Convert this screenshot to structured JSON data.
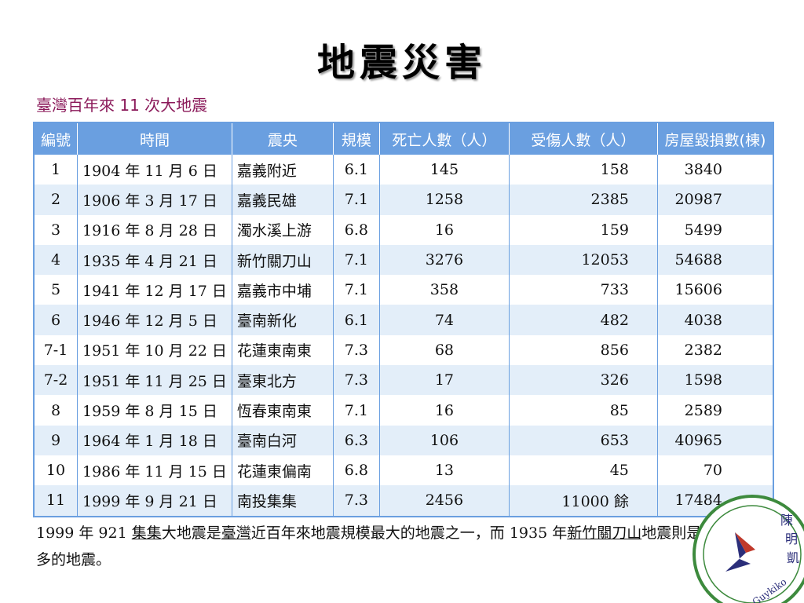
{
  "page": {
    "title": "地震災害",
    "subtitle": "臺灣百年來 11 次大地震"
  },
  "table": {
    "headers": [
      "編號",
      "時間",
      "震央",
      "規模",
      "死亡人數（人）",
      "受傷人數（人）",
      "房屋毀損數(棟)"
    ],
    "rows": [
      {
        "no": "1",
        "time": "1904 年 11 月 6 日",
        "epicenter": "嘉義附近",
        "magnitude": "6.1",
        "deaths": "145",
        "injuries": "158",
        "houses": "3840"
      },
      {
        "no": "2",
        "time": "1906 年 3 月 17 日",
        "epicenter": "嘉義民雄",
        "magnitude": "7.1",
        "deaths": "1258",
        "injuries": "2385",
        "houses": "20987"
      },
      {
        "no": "3",
        "time": "1916 年 8 月 28 日",
        "epicenter": "濁水溪上游",
        "magnitude": "6.8",
        "deaths": "16",
        "injuries": "159",
        "houses": "5499"
      },
      {
        "no": "4",
        "time": "1935 年 4 月 21 日",
        "epicenter": "新竹關刀山",
        "magnitude": "7.1",
        "deaths": "3276",
        "injuries": "12053",
        "houses": "54688"
      },
      {
        "no": "5",
        "time": "1941 年 12 月 17 日",
        "epicenter": "嘉義市中埔",
        "magnitude": "7.1",
        "deaths": "358",
        "injuries": "733",
        "houses": "15606"
      },
      {
        "no": "6",
        "time": "1946 年 12 月 5 日",
        "epicenter": "臺南新化",
        "magnitude": "6.1",
        "deaths": "74",
        "injuries": "482",
        "houses": "4038"
      },
      {
        "no": "7-1",
        "time": "1951 年 10 月 22 日",
        "epicenter": "花蓮東南東",
        "magnitude": "7.3",
        "deaths": "68",
        "injuries": "856",
        "houses": "2382"
      },
      {
        "no": "7-2",
        "time": "1951 年 11 月 25 日",
        "epicenter": "臺東北方",
        "magnitude": "7.3",
        "deaths": "17",
        "injuries": "326",
        "houses": "1598"
      },
      {
        "no": "8",
        "time": "1959 年 8 月 15 日",
        "epicenter": "恆春東南東",
        "magnitude": "7.1",
        "deaths": "16",
        "injuries": "85",
        "houses": "2589"
      },
      {
        "no": "9",
        "time": "1964 年 1 月 18 日",
        "epicenter": "臺南白河",
        "magnitude": "6.3",
        "deaths": "106",
        "injuries": "653",
        "houses": "40965"
      },
      {
        "no": "10",
        "time": "1986 年 11 月 15 日",
        "epicenter": "花蓮東偏南",
        "magnitude": "6.8",
        "deaths": "13",
        "injuries": "45",
        "houses": "70"
      },
      {
        "no": "11",
        "time": "1999 年 9 月 21 日",
        "epicenter": "南投集集",
        "magnitude": "7.3",
        "deaths": "2456",
        "injuries": "11000 餘",
        "houses": "17484"
      }
    ]
  },
  "note": {
    "p1": "1999 年 921 ",
    "u1": "集集",
    "p2": "大地震是",
    "u2": "臺灣",
    "p3": "近百年來地震規模最大的地震之一，而 1935 年",
    "u3": "新竹關刀山",
    "p4": "地震則是造成死傷最多的地震。"
  },
  "logo": {
    "text": "Guykiko",
    "chars": [
      "陳",
      "明",
      "凱"
    ]
  },
  "colors": {
    "header_bg": "#6a9fe0",
    "row_alt": "#e3eef9",
    "subtitle": "#8b1a5a"
  }
}
